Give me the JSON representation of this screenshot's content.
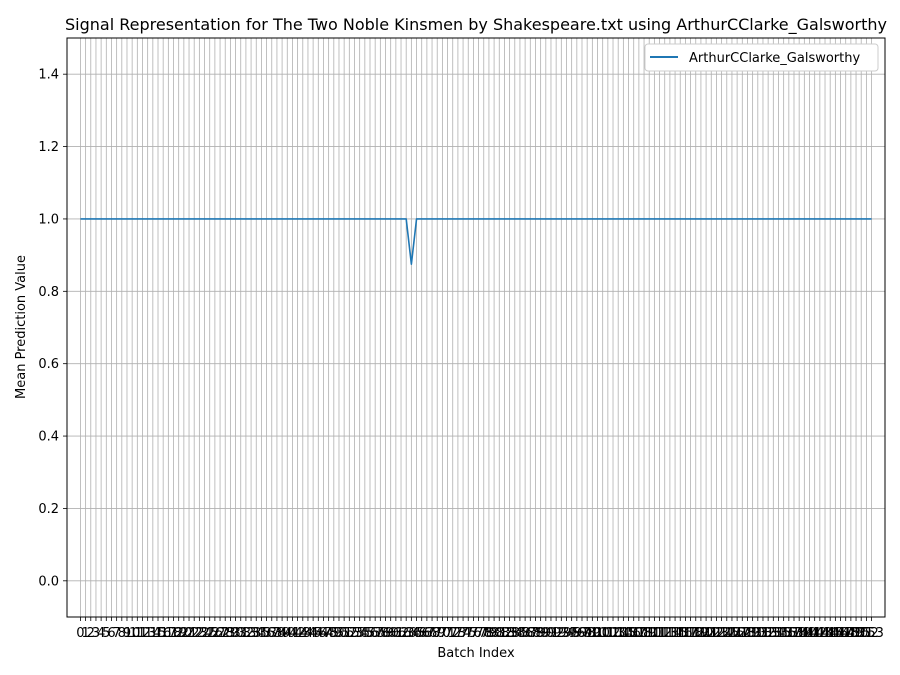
{
  "chart_data": {
    "type": "line",
    "title": "Signal Representation for The Two Noble Kinsmen by Shakespeare.txt using ArthurCClarke_Galsworthy",
    "xlabel": "Batch Index",
    "ylabel": "Mean Prediction Value",
    "ylim": [
      -0.1,
      1.5
    ],
    "xlim": [
      -2.6,
      155.6
    ],
    "yticks": [
      "0.0",
      "0.2",
      "0.4",
      "0.6",
      "0.8",
      "1.0",
      "1.2",
      "1.4"
    ],
    "ytick_values": [
      0.0,
      0.2,
      0.4,
      0.6,
      0.8,
      1.0,
      1.2,
      1.4
    ],
    "x_count": 154,
    "x_tick_labels": [
      "0",
      "1",
      "2",
      "3",
      "4",
      "5",
      "6",
      "7",
      "8",
      "9",
      "10",
      "11",
      "12",
      "13",
      "14",
      "15",
      "16",
      "17",
      "18",
      "19",
      "20",
      "21",
      "22",
      "23",
      "24",
      "25",
      "26",
      "27",
      "28",
      "29",
      "30",
      "31",
      "32",
      "33",
      "34",
      "35",
      "36",
      "37",
      "38",
      "39",
      "40",
      "41",
      "42",
      "43",
      "44",
      "45",
      "46",
      "47",
      "48",
      "49",
      "50",
      "51",
      "52",
      "53",
      "54",
      "55",
      "56",
      "57",
      "58",
      "59",
      "60",
      "61",
      "62",
      "63",
      "64",
      "65",
      "66",
      "67",
      "68",
      "69",
      "70",
      "71",
      "72",
      "73",
      "74",
      "75",
      "76",
      "77",
      "78",
      "79",
      "80",
      "81",
      "82",
      "83",
      "84",
      "85",
      "86",
      "87",
      "88",
      "89",
      "90",
      "91",
      "92",
      "93",
      "94",
      "95",
      "96",
      "97",
      "98",
      "99",
      "100",
      "101",
      "102",
      "103",
      "104",
      "105",
      "106",
      "107",
      "108",
      "109",
      "110",
      "111",
      "112",
      "113",
      "114",
      "115",
      "116",
      "117",
      "118",
      "119",
      "120",
      "121",
      "122",
      "123",
      "124",
      "125",
      "126",
      "127",
      "128",
      "129",
      "130",
      "131",
      "132",
      "133",
      "134",
      "135",
      "136",
      "137",
      "138",
      "139",
      "140",
      "141",
      "142",
      "143",
      "144",
      "145",
      "146",
      "147",
      "148",
      "149",
      "150",
      "151",
      "152",
      "153"
    ],
    "grid": true,
    "legend_position": "top-right",
    "series": [
      {
        "name": "ArthurCClarke_Galsworthy",
        "color": "#1f77b4",
        "default_value": 1.0,
        "overrides": [
          {
            "x": 64,
            "y": 0.875
          }
        ]
      }
    ]
  }
}
